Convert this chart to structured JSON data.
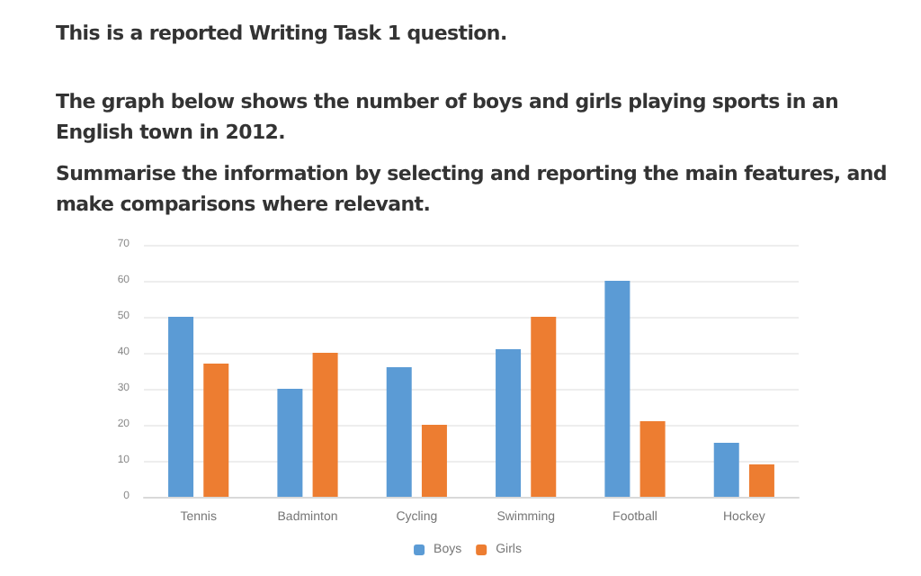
{
  "chart_data": {
    "type": "bar",
    "annotations": [
      "This is a reported Writing Task 1 question."
    ],
    "title": "The graph below shows the number of boys and girls playing sports in an English town in 2012.",
    "subtitle": "Summarise the information by selecting and reporting the main features, and make comparisons where relevant.",
    "categories": [
      "Tennis",
      "Badminton",
      "Cycling",
      "Swimming",
      "Football",
      "Hockey"
    ],
    "series": [
      {
        "name": "Boys",
        "color": "#5b9bd5",
        "values": [
          50,
          30,
          36,
          41,
          60,
          15
        ]
      },
      {
        "name": "Girls",
        "color": "#ed7d31",
        "values": [
          37,
          40,
          20,
          50,
          21,
          9
        ]
      }
    ],
    "ylim": [
      0,
      70
    ],
    "yticks": [
      0,
      10,
      20,
      30,
      40,
      50,
      60,
      70
    ],
    "grid": "y",
    "legend": "bottom"
  }
}
